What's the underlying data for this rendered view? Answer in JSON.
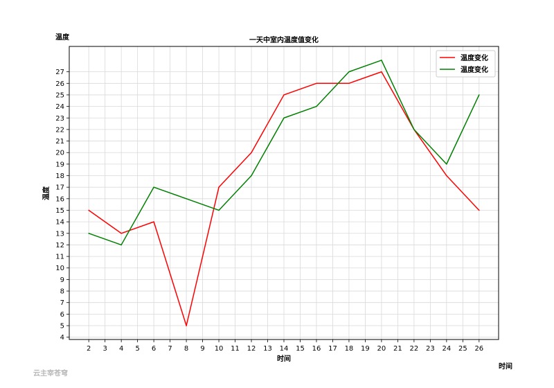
{
  "chart_data": {
    "type": "line",
    "title": "一天中室内温度值变化",
    "xlabel": "时间",
    "ylabel": "温度",
    "corner_ylabel": "温度",
    "corner_xlabel": "时间",
    "x": [
      2,
      4,
      6,
      8,
      10,
      12,
      14,
      16,
      18,
      20,
      22,
      24,
      26
    ],
    "series": [
      {
        "name": "温度变化",
        "color": "#ff0000",
        "values": [
          15,
          13,
          14,
          5,
          17,
          20,
          25,
          26,
          26,
          27,
          22,
          18,
          15
        ]
      },
      {
        "name": "温度变化",
        "color": "#008000",
        "values": [
          13,
          12,
          17,
          16,
          15,
          18,
          23,
          24,
          27,
          28,
          22,
          19,
          25
        ]
      }
    ],
    "xticks": [
      2,
      3,
      4,
      5,
      6,
      7,
      8,
      9,
      10,
      11,
      12,
      13,
      14,
      15,
      16,
      17,
      18,
      19,
      20,
      21,
      22,
      23,
      24,
      25,
      26
    ],
    "yticks": [
      4,
      5,
      6,
      7,
      8,
      9,
      10,
      11,
      12,
      13,
      14,
      15,
      16,
      17,
      18,
      19,
      20,
      21,
      22,
      23,
      24,
      25,
      26,
      27
    ],
    "xlim": [
      0.8,
      27.2
    ],
    "ylim": [
      3.8,
      29.2
    ],
    "grid": true,
    "legend_position": "top-right"
  },
  "watermark": "云主宰苍穹"
}
